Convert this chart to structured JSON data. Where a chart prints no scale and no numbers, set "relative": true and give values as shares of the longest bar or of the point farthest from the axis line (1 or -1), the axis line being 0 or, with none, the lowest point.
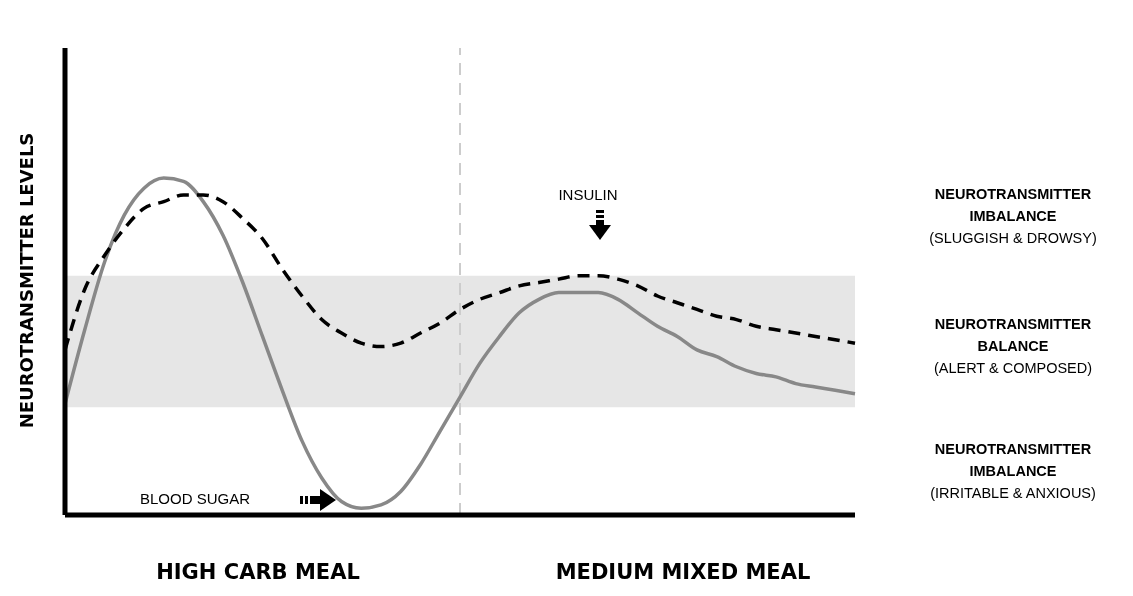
{
  "chart_data": {
    "type": "line",
    "relative": true,
    "ylabel": "NEUROTRANSMITTER LEVELS",
    "marker": "none",
    "categories": [
      null,
      null,
      null,
      null,
      null,
      null,
      null,
      null,
      null,
      null,
      null,
      null,
      null,
      null,
      null,
      null,
      null,
      null,
      null,
      null,
      null,
      null,
      null,
      null,
      null,
      null,
      null,
      null,
      null,
      null,
      null,
      null,
      null,
      null,
      null,
      null,
      null,
      null,
      null,
      null,
      null
    ],
    "series": [
      {
        "color": "#888888",
        "line_style": "solid",
        "values": [
          0.33,
          0.55,
          0.75,
          0.89,
          0.97,
          1,
          0.99,
          0.93,
          0.83,
          0.69,
          0.53,
          0.37,
          0.22,
          0.11,
          0.04,
          0.02,
          0.03,
          0.07,
          0.15,
          0.25,
          0.35,
          0.45,
          0.53,
          0.6,
          0.64,
          0.66,
          0.66,
          0.66,
          0.64,
          0.6,
          0.56,
          0.53,
          0.49,
          0.47,
          0.44,
          0.42,
          0.41,
          0.39,
          0.38,
          0.37,
          0.36
        ]
      },
      {
        "color": "#000000",
        "line_style": "dashed",
        "values": [
          0.49,
          0.67,
          0.77,
          0.85,
          0.91,
          0.93,
          0.95,
          0.95,
          0.93,
          0.88,
          0.82,
          0.73,
          0.65,
          0.58,
          0.54,
          0.51,
          0.5,
          0.51,
          0.54,
          0.57,
          0.61,
          0.64,
          0.66,
          0.68,
          0.69,
          0.7,
          0.71,
          0.71,
          0.7,
          0.68,
          0.65,
          0.63,
          0.61,
          0.59,
          0.58,
          0.56,
          0.55,
          0.54,
          0.53,
          0.52,
          0.51
        ]
      }
    ],
    "bands": [
      {
        "axis": "y",
        "from": 0.32,
        "to": 0.71,
        "color": "#e6e6e6"
      }
    ],
    "annotations": [
      "INSULIN",
      "BLOOD SUGAR",
      "HIGH CARB MEAL",
      "MEDIUM MIXED MEAL",
      "NEUROTRANSMITTER IMBALANCE",
      "(SLUGGISH & DROWSY)",
      "NEUROTRANSMITTER BALANCE",
      "(ALERT & COMPOSED)",
      "NEUROTRANSMITTER IMBALANCE",
      "(IRRITABLE & ANXIOUS)"
    ]
  }
}
